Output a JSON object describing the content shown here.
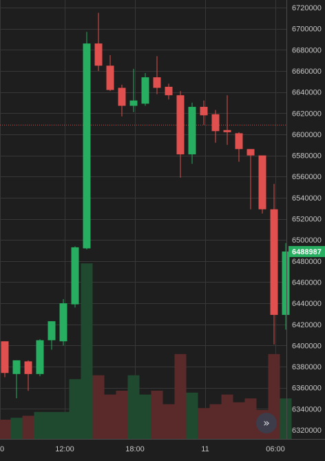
{
  "chart_data": {
    "type": "candlestick",
    "time_labels": [
      "0",
      "12:00",
      "18:00",
      "11",
      "06:00"
    ],
    "price_ticks": [
      6720000,
      6700000,
      6680000,
      6660000,
      6640000,
      6620000,
      6600000,
      6580000,
      6560000,
      6540000,
      6520000,
      6500000,
      6480000,
      6460000,
      6440000,
      6420000,
      6400000,
      6380000,
      6360000,
      6340000,
      6320000
    ],
    "ylim": [
      6316000,
      6722000
    ],
    "last_price": 6488987,
    "reference_price": 6609000,
    "grid": true,
    "candles": [
      {
        "o": 6404000,
        "h": 6404000,
        "l": 6370000,
        "c": 6374000,
        "v": 10
      },
      {
        "o": 6373000,
        "h": 6386000,
        "l": 6350000,
        "c": 6386000,
        "v": 11
      },
      {
        "o": 6385000,
        "h": 6386000,
        "l": 6357000,
        "c": 6373000,
        "v": 12
      },
      {
        "o": 6373000,
        "h": 6406000,
        "l": 6371000,
        "c": 6405000,
        "v": 14
      },
      {
        "o": 6405000,
        "h": 6423000,
        "l": 6396000,
        "c": 6423000,
        "v": 14
      },
      {
        "o": 6404000,
        "h": 6444000,
        "l": 6400000,
        "c": 6440000,
        "v": 14
      },
      {
        "o": 6439000,
        "h": 6494000,
        "l": 6436000,
        "c": 6493000,
        "v": 31
      },
      {
        "o": 6492000,
        "h": 6697000,
        "l": 6491000,
        "c": 6686000,
        "v": 91
      },
      {
        "o": 6686000,
        "h": 6715000,
        "l": 6660000,
        "c": 6665000,
        "v": 33
      },
      {
        "o": 6665000,
        "h": 6675000,
        "l": 6641000,
        "c": 6642000,
        "v": 23
      },
      {
        "o": 6644000,
        "h": 6647000,
        "l": 6617000,
        "c": 6627000,
        "v": 25
      },
      {
        "o": 6627000,
        "h": 6662000,
        "l": 6621000,
        "c": 6632000,
        "v": 33
      },
      {
        "o": 6629000,
        "h": 6658000,
        "l": 6627000,
        "c": 6654000,
        "v": 23
      },
      {
        "o": 6654000,
        "h": 6674000,
        "l": 6638000,
        "c": 6644000,
        "v": 25
      },
      {
        "o": 6645000,
        "h": 6648000,
        "l": 6633000,
        "c": 6637000,
        "v": 18
      },
      {
        "o": 6637000,
        "h": 6641000,
        "l": 6559000,
        "c": 6581000,
        "v": 44
      },
      {
        "o": 6581000,
        "h": 6630000,
        "l": 6572000,
        "c": 6626000,
        "v": 24
      },
      {
        "o": 6626000,
        "h": 6632000,
        "l": 6609000,
        "c": 6618000,
        "v": 16
      },
      {
        "o": 6619000,
        "h": 6623000,
        "l": 6592000,
        "c": 6603000,
        "v": 18
      },
      {
        "o": 6604000,
        "h": 6637000,
        "l": 6590000,
        "c": 6602000,
        "v": 23
      },
      {
        "o": 6601000,
        "h": 6602000,
        "l": 6574000,
        "c": 6586000,
        "v": 19
      },
      {
        "o": 6586000,
        "h": 6586000,
        "l": 6529000,
        "c": 6580000,
        "v": 21
      },
      {
        "o": 6580000,
        "h": 6580000,
        "l": 6525000,
        "c": 6529000,
        "v": 15
      },
      {
        "o": 6529000,
        "h": 6553000,
        "l": 6401000,
        "c": 6429000,
        "v": 44
      },
      {
        "o": 6429000,
        "h": 6497000,
        "l": 6415000,
        "c": 6489000,
        "v": 21
      }
    ]
  },
  "colors": {
    "background": "#1e1e1e",
    "grid": "#383838",
    "up": "#27ae60",
    "down": "#e0504f",
    "up_volume": "#1f4a30",
    "down_volume": "#5a2a2a",
    "axis_text": "#c8c8c8",
    "reference_line": "#d05050"
  },
  "scroll_button": {
    "icon": "double-chevron-right-icon",
    "glyph": "»"
  }
}
